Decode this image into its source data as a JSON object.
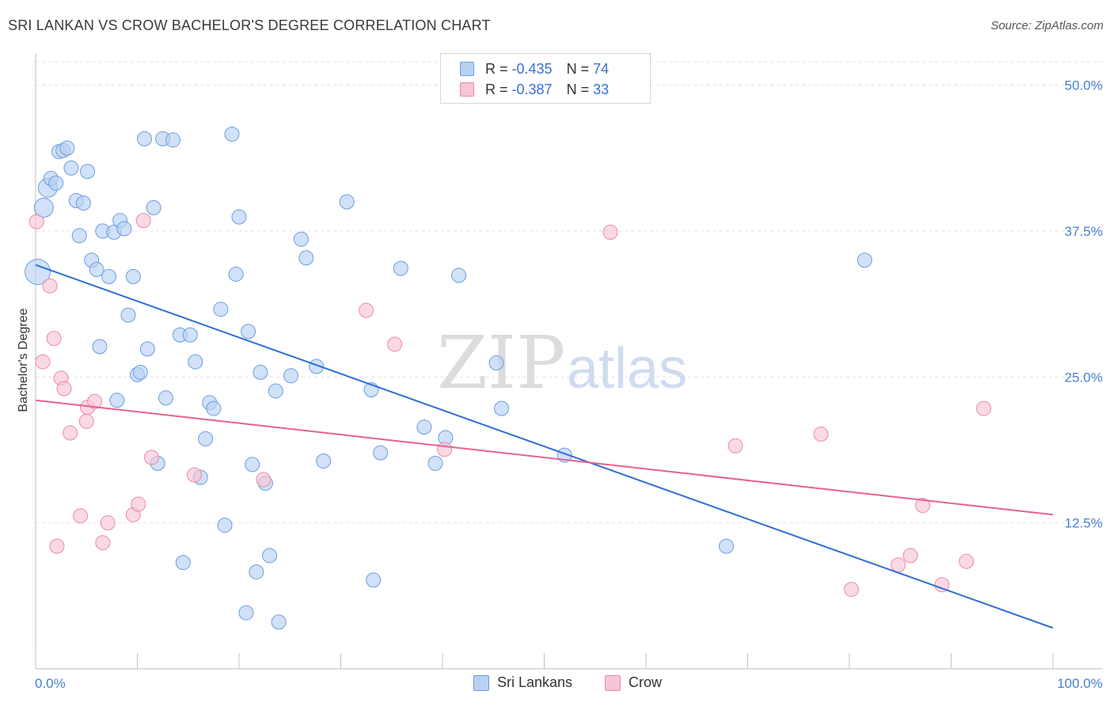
{
  "title": "SRI LANKAN VS CROW BACHELOR'S DEGREE CORRELATION CHART",
  "source": "Source: ZipAtlas.com",
  "watermark": {
    "zip": "ZIP",
    "atlas": "atlas"
  },
  "colors": {
    "blue_fill": "#b8d1f3",
    "blue_stroke": "#6d9de0",
    "blue_line": "#2f6fd3",
    "pink_fill": "#f7c5d5",
    "pink_stroke": "#e98aa8",
    "pink_line": "#e4628f",
    "tick_text": "#4a7fd4"
  },
  "legend": {
    "rows": [
      {
        "r_label": "R =",
        "r_value": "-0.435",
        "n_label": "N =",
        "n_value": "74"
      },
      {
        "r_label": "R =",
        "r_value": "-0.387",
        "n_label": "N =",
        "n_value": "33"
      }
    ]
  },
  "bottom_legend": {
    "series1": "Sri Lankans",
    "series2": "Crow"
  },
  "chart_data": {
    "type": "scatter",
    "xlabel": "",
    "ylabel": "Bachelor's Degree",
    "xlim": [
      0,
      100
    ],
    "ylim": [
      0,
      52
    ],
    "x_tick_labels": [
      "0.0%",
      "100.0%"
    ],
    "y_ticks": [
      12.5,
      25.0,
      37.5,
      50.0
    ],
    "y_tick_labels": [
      "12.5%",
      "25.0%",
      "37.5%",
      "50.0%"
    ],
    "grid": true,
    "legend_position": "top-center",
    "series": [
      {
        "name": "Sri Lankans",
        "trend": {
          "x": [
            0,
            100
          ],
          "y": [
            34.6,
            3.5
          ]
        },
        "points": [
          {
            "x": 0.2,
            "y": 34.0,
            "s": 3
          },
          {
            "x": 0.8,
            "y": 39.5,
            "s": 2
          },
          {
            "x": 1.2,
            "y": 41.2,
            "s": 2
          },
          {
            "x": 1.5,
            "y": 42.0,
            "s": 1
          },
          {
            "x": 2.0,
            "y": 41.6,
            "s": 1
          },
          {
            "x": 2.3,
            "y": 44.3,
            "s": 1
          },
          {
            "x": 2.7,
            "y": 44.4,
            "s": 1
          },
          {
            "x": 3.1,
            "y": 44.6,
            "s": 1
          },
          {
            "x": 3.5,
            "y": 42.9,
            "s": 1
          },
          {
            "x": 4.0,
            "y": 40.1,
            "s": 1
          },
          {
            "x": 4.3,
            "y": 37.1,
            "s": 1
          },
          {
            "x": 4.7,
            "y": 39.9,
            "s": 1
          },
          {
            "x": 5.1,
            "y": 42.6,
            "s": 1
          },
          {
            "x": 5.5,
            "y": 35.0,
            "s": 1
          },
          {
            "x": 6.0,
            "y": 34.2,
            "s": 1
          },
          {
            "x": 6.3,
            "y": 27.6,
            "s": 1
          },
          {
            "x": 6.6,
            "y": 37.5,
            "s": 1
          },
          {
            "x": 7.2,
            "y": 33.6,
            "s": 1
          },
          {
            "x": 7.7,
            "y": 37.4,
            "s": 1
          },
          {
            "x": 8.3,
            "y": 38.4,
            "s": 1
          },
          {
            "x": 8.7,
            "y": 37.7,
            "s": 1
          },
          {
            "x": 9.1,
            "y": 30.3,
            "s": 1
          },
          {
            "x": 9.6,
            "y": 33.6,
            "s": 1
          },
          {
            "x": 8.0,
            "y": 23.0,
            "s": 1
          },
          {
            "x": 10.0,
            "y": 25.2,
            "s": 1
          },
          {
            "x": 10.3,
            "y": 25.4,
            "s": 1
          },
          {
            "x": 10.7,
            "y": 45.4,
            "s": 1
          },
          {
            "x": 11.0,
            "y": 27.4,
            "s": 1
          },
          {
            "x": 11.6,
            "y": 39.5,
            "s": 1
          },
          {
            "x": 12.0,
            "y": 17.6,
            "s": 1
          },
          {
            "x": 12.5,
            "y": 45.4,
            "s": 1
          },
          {
            "x": 12.8,
            "y": 23.2,
            "s": 1
          },
          {
            "x": 13.5,
            "y": 45.3,
            "s": 1
          },
          {
            "x": 14.2,
            "y": 28.6,
            "s": 1
          },
          {
            "x": 14.5,
            "y": 9.1,
            "s": 1
          },
          {
            "x": 15.2,
            "y": 28.6,
            "s": 1
          },
          {
            "x": 15.7,
            "y": 26.3,
            "s": 1
          },
          {
            "x": 16.2,
            "y": 16.4,
            "s": 1
          },
          {
            "x": 16.7,
            "y": 19.7,
            "s": 1
          },
          {
            "x": 17.1,
            "y": 22.8,
            "s": 1
          },
          {
            "x": 17.5,
            "y": 22.3,
            "s": 1
          },
          {
            "x": 18.2,
            "y": 30.8,
            "s": 1
          },
          {
            "x": 18.6,
            "y": 12.3,
            "s": 1
          },
          {
            "x": 19.3,
            "y": 45.8,
            "s": 1
          },
          {
            "x": 19.7,
            "y": 33.8,
            "s": 1
          },
          {
            "x": 20.0,
            "y": 38.7,
            "s": 1
          },
          {
            "x": 20.7,
            "y": 4.8,
            "s": 1
          },
          {
            "x": 20.9,
            "y": 28.9,
            "s": 1
          },
          {
            "x": 21.3,
            "y": 17.5,
            "s": 1
          },
          {
            "x": 21.7,
            "y": 8.3,
            "s": 1
          },
          {
            "x": 22.1,
            "y": 25.4,
            "s": 1
          },
          {
            "x": 22.6,
            "y": 15.9,
            "s": 1
          },
          {
            "x": 23.0,
            "y": 9.7,
            "s": 1
          },
          {
            "x": 23.6,
            "y": 23.8,
            "s": 1
          },
          {
            "x": 23.9,
            "y": 4.0,
            "s": 1
          },
          {
            "x": 25.1,
            "y": 25.1,
            "s": 1
          },
          {
            "x": 26.1,
            "y": 36.8,
            "s": 1
          },
          {
            "x": 26.6,
            "y": 35.2,
            "s": 1
          },
          {
            "x": 27.6,
            "y": 25.9,
            "s": 1
          },
          {
            "x": 28.3,
            "y": 17.8,
            "s": 1
          },
          {
            "x": 30.6,
            "y": 40.0,
            "s": 1
          },
          {
            "x": 33.0,
            "y": 23.9,
            "s": 1
          },
          {
            "x": 33.2,
            "y": 7.6,
            "s": 1
          },
          {
            "x": 33.9,
            "y": 18.5,
            "s": 1
          },
          {
            "x": 35.9,
            "y": 34.3,
            "s": 1
          },
          {
            "x": 38.2,
            "y": 20.7,
            "s": 1
          },
          {
            "x": 39.3,
            "y": 17.6,
            "s": 1
          },
          {
            "x": 40.3,
            "y": 19.8,
            "s": 1
          },
          {
            "x": 41.6,
            "y": 33.7,
            "s": 1
          },
          {
            "x": 45.3,
            "y": 26.2,
            "s": 1
          },
          {
            "x": 45.8,
            "y": 22.3,
            "s": 1
          },
          {
            "x": 52.0,
            "y": 18.3,
            "s": 1
          },
          {
            "x": 67.9,
            "y": 10.5,
            "s": 1
          },
          {
            "x": 81.5,
            "y": 35.0,
            "s": 1
          }
        ]
      },
      {
        "name": "Crow",
        "trend": {
          "x": [
            0,
            100
          ],
          "y": [
            23.0,
            13.2
          ]
        },
        "points": [
          {
            "x": 0.1,
            "y": 38.3,
            "s": 1
          },
          {
            "x": 0.7,
            "y": 26.3,
            "s": 1
          },
          {
            "x": 1.4,
            "y": 32.8,
            "s": 1
          },
          {
            "x": 1.8,
            "y": 28.3,
            "s": 1
          },
          {
            "x": 2.1,
            "y": 10.5,
            "s": 1
          },
          {
            "x": 2.5,
            "y": 24.9,
            "s": 1
          },
          {
            "x": 2.8,
            "y": 24.0,
            "s": 1
          },
          {
            "x": 3.4,
            "y": 20.2,
            "s": 1
          },
          {
            "x": 4.4,
            "y": 13.1,
            "s": 1
          },
          {
            "x": 5.0,
            "y": 21.2,
            "s": 1
          },
          {
            "x": 5.1,
            "y": 22.4,
            "s": 1
          },
          {
            "x": 5.8,
            "y": 22.9,
            "s": 1
          },
          {
            "x": 6.6,
            "y": 10.8,
            "s": 1
          },
          {
            "x": 7.1,
            "y": 12.5,
            "s": 1
          },
          {
            "x": 9.6,
            "y": 13.2,
            "s": 1
          },
          {
            "x": 10.1,
            "y": 14.1,
            "s": 1
          },
          {
            "x": 10.6,
            "y": 38.4,
            "s": 1
          },
          {
            "x": 11.4,
            "y": 18.1,
            "s": 1
          },
          {
            "x": 15.6,
            "y": 16.6,
            "s": 1
          },
          {
            "x": 22.4,
            "y": 16.2,
            "s": 1
          },
          {
            "x": 32.5,
            "y": 30.7,
            "s": 1
          },
          {
            "x": 35.3,
            "y": 27.8,
            "s": 1
          },
          {
            "x": 40.2,
            "y": 18.8,
            "s": 1
          },
          {
            "x": 56.5,
            "y": 37.4,
            "s": 1
          },
          {
            "x": 68.8,
            "y": 19.1,
            "s": 1
          },
          {
            "x": 77.2,
            "y": 20.1,
            "s": 1
          },
          {
            "x": 80.2,
            "y": 6.8,
            "s": 1
          },
          {
            "x": 84.8,
            "y": 8.9,
            "s": 1
          },
          {
            "x": 86.0,
            "y": 9.7,
            "s": 1
          },
          {
            "x": 87.2,
            "y": 14.0,
            "s": 1
          },
          {
            "x": 89.1,
            "y": 7.2,
            "s": 1
          },
          {
            "x": 91.5,
            "y": 9.2,
            "s": 1
          },
          {
            "x": 93.2,
            "y": 22.3,
            "s": 1
          }
        ]
      }
    ]
  }
}
